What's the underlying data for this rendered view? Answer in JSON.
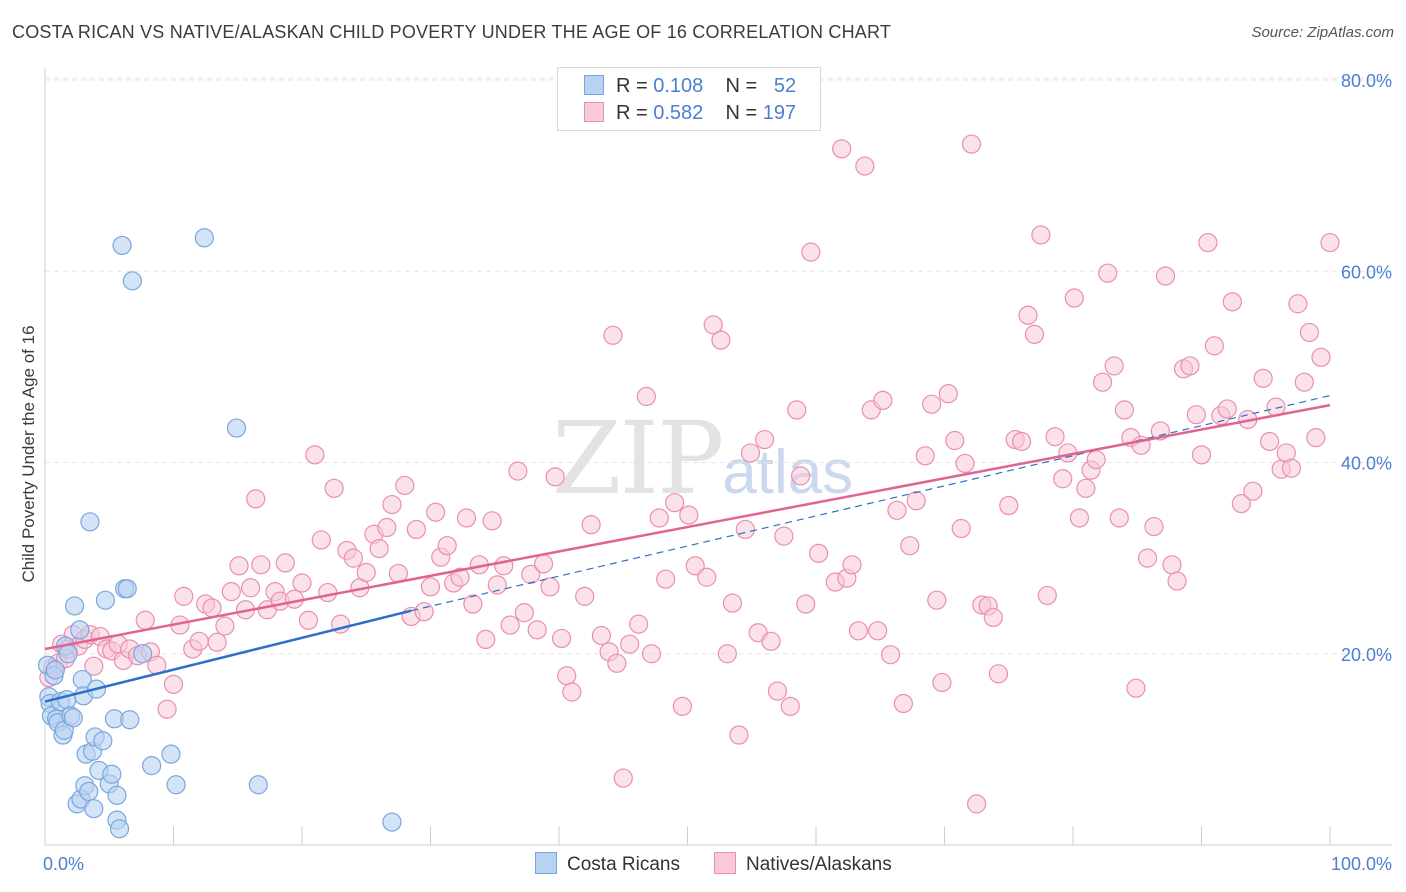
{
  "title": "COSTA RICAN VS NATIVE/ALASKAN CHILD POVERTY UNDER THE AGE OF 16 CORRELATION CHART",
  "source": "Source: ZipAtlas.com",
  "watermark": {
    "zip": "ZIP",
    "atlas": "atlas"
  },
  "legend": {
    "rows": [
      {
        "r_label": "R =",
        "r_value": "0.108",
        "n_label": "N =",
        "n_value": "52"
      },
      {
        "r_label": "R =",
        "r_value": "0.582",
        "n_label": "N =",
        "n_value": "197"
      }
    ]
  },
  "colors": {
    "blue_fill": "#b8d2f2",
    "blue_stroke": "#7aa6de",
    "blue_line": "#2f6fc9",
    "pink_fill": "#f8c9d8",
    "pink_stroke": "#ea8fae",
    "pink_line": "#e0648f",
    "tick_text": "#4a7fd1",
    "grid": "#e6e6e6"
  },
  "chart_data": {
    "type": "scatter",
    "title": "COSTA RICAN VS NATIVE/ALASKAN CHILD POVERTY UNDER THE AGE OF 16 CORRELATION CHART",
    "xlabel": "",
    "ylabel": "Child Poverty Under the Age of 16",
    "xlim": [
      0,
      100
    ],
    "ylim": [
      0,
      85
    ],
    "x_tick_labels": [
      "0.0%",
      "100.0%"
    ],
    "y_ticks": [
      20,
      40,
      60,
      80
    ],
    "y_tick_labels": [
      "20.0%",
      "40.0%",
      "60.0%",
      "80.0%"
    ],
    "grid": true,
    "legend_position": "top-center",
    "series": [
      {
        "name": "Costa Ricans",
        "trend": {
          "x0": 0,
          "y0": 15.0,
          "x1": 28.5,
          "y1": 24.5,
          "dashed_to": {
            "x": 100,
            "y": 47.0
          }
        },
        "points": [
          [
            0.2,
            18.8
          ],
          [
            0.3,
            15.5
          ],
          [
            0.4,
            14.8
          ],
          [
            0.5,
            13.5
          ],
          [
            0.7,
            17.7
          ],
          [
            0.8,
            18.3
          ],
          [
            0.9,
            13.2
          ],
          [
            1.0,
            12.8
          ],
          [
            1.2,
            15.0
          ],
          [
            1.4,
            11.5
          ],
          [
            1.5,
            12.0
          ],
          [
            1.6,
            20.8
          ],
          [
            1.7,
            15.2
          ],
          [
            1.8,
            20.0
          ],
          [
            2.0,
            13.5
          ],
          [
            2.2,
            13.3
          ],
          [
            2.3,
            25.0
          ],
          [
            2.5,
            4.3
          ],
          [
            2.7,
            22.5
          ],
          [
            2.8,
            4.8
          ],
          [
            2.9,
            17.3
          ],
          [
            3.0,
            15.6
          ],
          [
            3.1,
            6.2
          ],
          [
            3.2,
            9.5
          ],
          [
            3.4,
            5.6
          ],
          [
            3.5,
            33.8
          ],
          [
            3.7,
            9.8
          ],
          [
            3.8,
            3.8
          ],
          [
            3.9,
            11.3
          ],
          [
            4.0,
            16.3
          ],
          [
            4.2,
            7.8
          ],
          [
            4.5,
            10.9
          ],
          [
            4.7,
            25.6
          ],
          [
            5.0,
            6.4
          ],
          [
            5.2,
            7.4
          ],
          [
            5.4,
            13.2
          ],
          [
            5.6,
            2.6
          ],
          [
            5.6,
            5.2
          ],
          [
            5.8,
            1.7
          ],
          [
            6.0,
            62.7
          ],
          [
            6.2,
            26.8
          ],
          [
            6.4,
            26.8
          ],
          [
            6.6,
            13.1
          ],
          [
            6.8,
            59.0
          ],
          [
            7.6,
            20.0
          ],
          [
            8.3,
            8.3
          ],
          [
            9.8,
            9.5
          ],
          [
            10.2,
            6.3
          ],
          [
            12.4,
            63.5
          ],
          [
            14.9,
            43.6
          ],
          [
            16.6,
            6.3
          ],
          [
            27.0,
            2.4
          ]
        ]
      },
      {
        "name": "Natives/Alaskans",
        "trend": {
          "x0": 0,
          "y0": 20.5,
          "x1": 100,
          "y1": 46.0
        },
        "points": [
          [
            0.3,
            17.5
          ],
          [
            0.6,
            18.5
          ],
          [
            1.0,
            19.0
          ],
          [
            1.3,
            21.0
          ],
          [
            1.6,
            19.5
          ],
          [
            1.8,
            20.5
          ],
          [
            2.2,
            22.0
          ],
          [
            2.6,
            20.8
          ],
          [
            3.1,
            21.5
          ],
          [
            3.5,
            22.0
          ],
          [
            3.8,
            18.7
          ],
          [
            4.3,
            21.8
          ],
          [
            4.8,
            20.5
          ],
          [
            5.2,
            20.3
          ],
          [
            5.7,
            21.0
          ],
          [
            6.1,
            19.3
          ],
          [
            6.6,
            20.5
          ],
          [
            7.2,
            19.8
          ],
          [
            7.8,
            23.5
          ],
          [
            8.2,
            20.2
          ],
          [
            8.7,
            18.8
          ],
          [
            9.5,
            14.2
          ],
          [
            10.0,
            16.8
          ],
          [
            10.5,
            23.0
          ],
          [
            10.8,
            26.0
          ],
          [
            11.5,
            20.5
          ],
          [
            12.0,
            21.3
          ],
          [
            12.5,
            25.2
          ],
          [
            13.0,
            24.8
          ],
          [
            13.4,
            21.2
          ],
          [
            14.0,
            22.9
          ],
          [
            14.5,
            26.5
          ],
          [
            15.1,
            29.2
          ],
          [
            15.6,
            24.6
          ],
          [
            16.0,
            26.9
          ],
          [
            16.4,
            36.2
          ],
          [
            16.8,
            29.3
          ],
          [
            17.3,
            24.6
          ],
          [
            17.9,
            26.5
          ],
          [
            18.3,
            25.5
          ],
          [
            18.7,
            29.5
          ],
          [
            19.4,
            25.7
          ],
          [
            20.0,
            27.4
          ],
          [
            20.5,
            23.5
          ],
          [
            21.0,
            40.8
          ],
          [
            21.5,
            31.9
          ],
          [
            22.0,
            26.4
          ],
          [
            22.5,
            37.3
          ],
          [
            23.0,
            23.1
          ],
          [
            23.5,
            30.8
          ],
          [
            24.0,
            30.0
          ],
          [
            24.5,
            26.9
          ],
          [
            25.0,
            28.5
          ],
          [
            25.6,
            32.5
          ],
          [
            26.0,
            31.0
          ],
          [
            26.6,
            33.2
          ],
          [
            27.0,
            35.6
          ],
          [
            27.5,
            28.4
          ],
          [
            28.0,
            37.6
          ],
          [
            28.5,
            23.9
          ],
          [
            28.9,
            33.0
          ],
          [
            29.5,
            24.4
          ],
          [
            30.0,
            27.0
          ],
          [
            30.4,
            34.8
          ],
          [
            30.8,
            30.1
          ],
          [
            31.3,
            31.3
          ],
          [
            31.8,
            27.4
          ],
          [
            32.3,
            28.0
          ],
          [
            32.8,
            34.2
          ],
          [
            33.3,
            25.2
          ],
          [
            33.8,
            29.3
          ],
          [
            34.3,
            21.5
          ],
          [
            34.8,
            33.9
          ],
          [
            35.2,
            27.2
          ],
          [
            35.7,
            29.2
          ],
          [
            36.2,
            23.0
          ],
          [
            36.8,
            39.1
          ],
          [
            37.3,
            24.3
          ],
          [
            37.8,
            28.3
          ],
          [
            38.3,
            22.5
          ],
          [
            38.8,
            29.4
          ],
          [
            39.3,
            27.0
          ],
          [
            39.7,
            38.5
          ],
          [
            40.2,
            21.6
          ],
          [
            40.6,
            17.7
          ],
          [
            41.0,
            16.0
          ],
          [
            42.0,
            26.0
          ],
          [
            42.5,
            33.5
          ],
          [
            43.3,
            21.9
          ],
          [
            43.9,
            20.2
          ],
          [
            44.2,
            53.3
          ],
          [
            44.5,
            19.0
          ],
          [
            45.0,
            7.0
          ],
          [
            45.5,
            21.0
          ],
          [
            46.2,
            23.1
          ],
          [
            46.8,
            46.9
          ],
          [
            47.2,
            20.0
          ],
          [
            47.8,
            34.2
          ],
          [
            48.3,
            27.8
          ],
          [
            49.0,
            35.8
          ],
          [
            49.6,
            14.5
          ],
          [
            50.1,
            34.5
          ],
          [
            50.6,
            29.2
          ],
          [
            51.5,
            28.0
          ],
          [
            52.0,
            54.4
          ],
          [
            52.6,
            52.8
          ],
          [
            53.1,
            20.0
          ],
          [
            53.5,
            25.3
          ],
          [
            54.0,
            11.5
          ],
          [
            54.5,
            33.0
          ],
          [
            54.9,
            41.0
          ],
          [
            55.5,
            22.2
          ],
          [
            56.0,
            42.4
          ],
          [
            56.5,
            21.3
          ],
          [
            57.0,
            16.1
          ],
          [
            57.5,
            32.3
          ],
          [
            58.0,
            14.5
          ],
          [
            58.5,
            45.5
          ],
          [
            58.8,
            38.6
          ],
          [
            59.2,
            25.2
          ],
          [
            59.6,
            62.0
          ],
          [
            60.2,
            30.5
          ],
          [
            61.5,
            27.5
          ],
          [
            62.0,
            72.8
          ],
          [
            62.4,
            27.9
          ],
          [
            62.8,
            29.3
          ],
          [
            63.3,
            22.4
          ],
          [
            63.8,
            71.0
          ],
          [
            64.3,
            45.5
          ],
          [
            64.8,
            22.4
          ],
          [
            65.2,
            46.5
          ],
          [
            65.8,
            19.9
          ],
          [
            66.3,
            35.0
          ],
          [
            66.8,
            14.8
          ],
          [
            67.3,
            31.3
          ],
          [
            67.8,
            36.0
          ],
          [
            68.5,
            40.7
          ],
          [
            69.0,
            46.1
          ],
          [
            69.4,
            25.6
          ],
          [
            69.8,
            17.0
          ],
          [
            70.3,
            47.2
          ],
          [
            70.8,
            42.3
          ],
          [
            71.3,
            33.1
          ],
          [
            71.6,
            39.9
          ],
          [
            72.1,
            73.3
          ],
          [
            72.5,
            4.3
          ],
          [
            72.9,
            25.1
          ],
          [
            73.4,
            25.0
          ],
          [
            73.8,
            23.8
          ],
          [
            74.2,
            17.9
          ],
          [
            75.0,
            35.5
          ],
          [
            75.5,
            42.4
          ],
          [
            76.0,
            42.2
          ],
          [
            76.5,
            55.4
          ],
          [
            77.0,
            53.4
          ],
          [
            77.5,
            63.8
          ],
          [
            78.0,
            26.1
          ],
          [
            78.6,
            42.7
          ],
          [
            79.2,
            38.3
          ],
          [
            79.6,
            41.0
          ],
          [
            80.1,
            57.2
          ],
          [
            80.5,
            34.2
          ],
          [
            81.0,
            37.3
          ],
          [
            81.4,
            39.2
          ],
          [
            81.8,
            40.3
          ],
          [
            82.3,
            48.4
          ],
          [
            82.7,
            59.8
          ],
          [
            83.2,
            50.1
          ],
          [
            83.6,
            34.2
          ],
          [
            84.0,
            45.5
          ],
          [
            84.5,
            42.6
          ],
          [
            84.9,
            16.4
          ],
          [
            85.3,
            41.8
          ],
          [
            85.8,
            30.0
          ],
          [
            86.3,
            33.3
          ],
          [
            86.8,
            43.3
          ],
          [
            87.2,
            59.5
          ],
          [
            87.7,
            29.3
          ],
          [
            88.1,
            27.6
          ],
          [
            88.6,
            49.8
          ],
          [
            89.1,
            50.1
          ],
          [
            89.6,
            45.0
          ],
          [
            90.0,
            40.8
          ],
          [
            90.5,
            63.0
          ],
          [
            91.0,
            52.2
          ],
          [
            91.5,
            44.9
          ],
          [
            92.0,
            45.6
          ],
          [
            92.4,
            56.8
          ],
          [
            93.1,
            35.7
          ],
          [
            93.6,
            44.5
          ],
          [
            94.0,
            37.0
          ],
          [
            94.8,
            48.8
          ],
          [
            95.3,
            42.2
          ],
          [
            95.8,
            45.8
          ],
          [
            96.2,
            39.3
          ],
          [
            96.6,
            41.0
          ],
          [
            97.0,
            39.4
          ],
          [
            97.5,
            56.6
          ],
          [
            98.0,
            48.4
          ],
          [
            98.4,
            53.6
          ],
          [
            98.9,
            42.6
          ],
          [
            99.3,
            51.0
          ],
          [
            100.0,
            63.0
          ]
        ]
      }
    ]
  }
}
